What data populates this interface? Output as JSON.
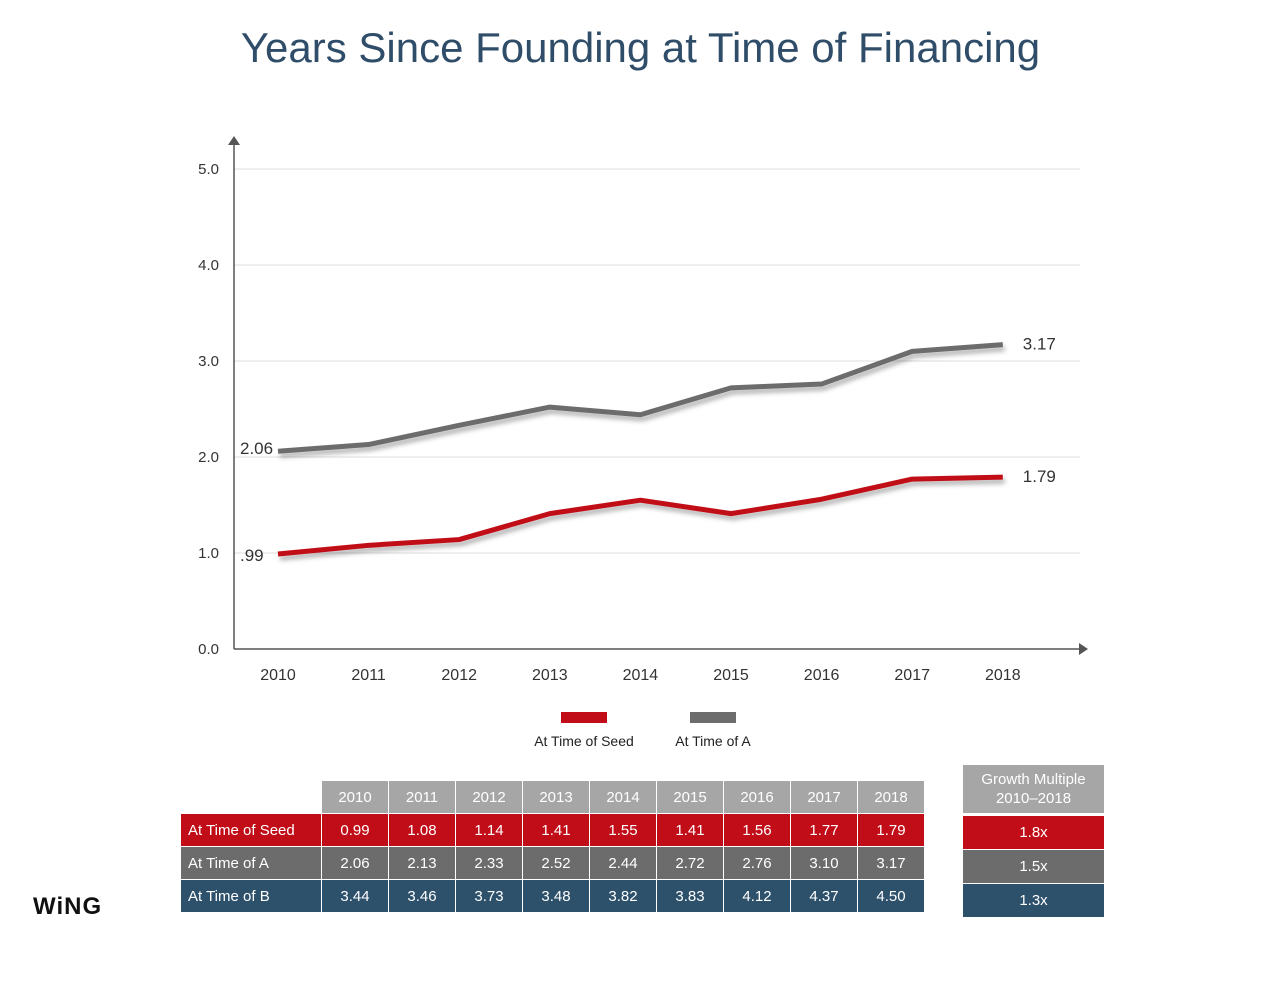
{
  "title": "Years Since Founding at Time of Financing",
  "logo_text": "WiNG",
  "colors": {
    "seed": "#c00d18",
    "a": "#6c6c6c",
    "b": "#2d506b",
    "header": "#a6a6a6",
    "title": "#2f4d68"
  },
  "chart_data": {
    "type": "line",
    "title": "Years Since Founding at Time of Financing",
    "categories": [
      "2010",
      "2011",
      "2012",
      "2013",
      "2014",
      "2015",
      "2016",
      "2017",
      "2018"
    ],
    "series": [
      {
        "name": "At Time of Seed",
        "color": "#c00d18",
        "values": [
          0.99,
          1.08,
          1.14,
          1.41,
          1.55,
          1.41,
          1.56,
          1.77,
          1.79
        ],
        "start_label": ".99",
        "end_label": "1.79"
      },
      {
        "name": "At Time of A",
        "color": "#6c6c6c",
        "values": [
          2.06,
          2.13,
          2.33,
          2.52,
          2.44,
          2.72,
          2.76,
          3.1,
          3.17
        ],
        "start_label": "2.06",
        "end_label": "3.17"
      }
    ],
    "yticks": [
      "0.0",
      "1.0",
      "2.0",
      "3.0",
      "4.0",
      "5.0"
    ],
    "ylim": [
      0,
      5
    ],
    "grid": true,
    "legend": "bottom",
    "xlabel": "",
    "ylabel": ""
  },
  "table": {
    "years": [
      "2010",
      "2011",
      "2012",
      "2013",
      "2014",
      "2015",
      "2016",
      "2017",
      "2018"
    ],
    "rows": [
      {
        "label": "At Time of Seed",
        "values": [
          "0.99",
          "1.08",
          "1.14",
          "1.41",
          "1.55",
          "1.41",
          "1.56",
          "1.77",
          "1.79"
        ]
      },
      {
        "label": "At Time of A",
        "values": [
          "2.06",
          "2.13",
          "2.33",
          "2.52",
          "2.44",
          "2.72",
          "2.76",
          "3.10",
          "3.17"
        ]
      },
      {
        "label": "At Time of B",
        "values": [
          "3.44",
          "3.46",
          "3.73",
          "3.48",
          "3.82",
          "3.83",
          "4.12",
          "4.37",
          "4.50"
        ]
      }
    ]
  },
  "growth": {
    "header_line1": "Growth Multiple",
    "header_line2": "2010–2018",
    "values": [
      "1.8x",
      "1.5x",
      "1.3x"
    ]
  }
}
